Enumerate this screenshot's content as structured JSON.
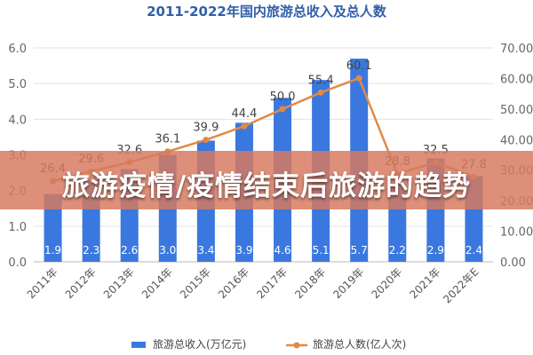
{
  "chart_data": {
    "type": "bar+line",
    "title": "2011-2022年国内旅游总收入及总人数",
    "categories": [
      "2011年",
      "2012年",
      "2013年",
      "2014年",
      "2015年",
      "2016年",
      "2017年",
      "2018年",
      "2019年",
      "2020年",
      "2021年",
      "2022年E"
    ],
    "series": [
      {
        "name": "旅游总收入(万亿元)",
        "kind": "bar",
        "axis": "left",
        "color": "#3a78df",
        "values": [
          1.9,
          2.3,
          2.6,
          3.0,
          3.4,
          3.9,
          4.6,
          5.1,
          5.7,
          2.2,
          2.9,
          2.4
        ],
        "labels": [
          "1.9",
          "2.3",
          "2.6",
          "3.0",
          "3.4",
          "3.9",
          "4.6",
          "5.1",
          "5.7",
          "2.2",
          "2.9",
          "2.4"
        ]
      },
      {
        "name": "旅游总人数(亿人次)",
        "kind": "line",
        "axis": "right",
        "color": "#e08a45",
        "values": [
          26.4,
          29.6,
          32.6,
          36.1,
          39.9,
          44.4,
          50.0,
          55.4,
          60.1,
          28.8,
          32.5,
          27.8
        ],
        "labels": [
          "26.4",
          "29.6",
          "32.6",
          "36.1",
          "39.9",
          "44.4",
          "50.0",
          "55.4",
          "60.1",
          "28.8",
          "32.5",
          "27.8"
        ]
      }
    ],
    "y_left": {
      "min": 0,
      "max": 6,
      "ticks": [
        "0.0",
        "1.0",
        "2.0",
        "3.0",
        "4.0",
        "5.0",
        "6.0"
      ]
    },
    "y_right": {
      "min": 0,
      "max": 70,
      "ticks": [
        "0.00",
        "10.00",
        "20.00",
        "30.00",
        "40.00",
        "50.00",
        "60.00",
        "70.00"
      ]
    },
    "grid": true,
    "legend_position": "bottom"
  },
  "banner": {
    "text": "旅游疫情/疫情结束后旅游的趋势"
  }
}
